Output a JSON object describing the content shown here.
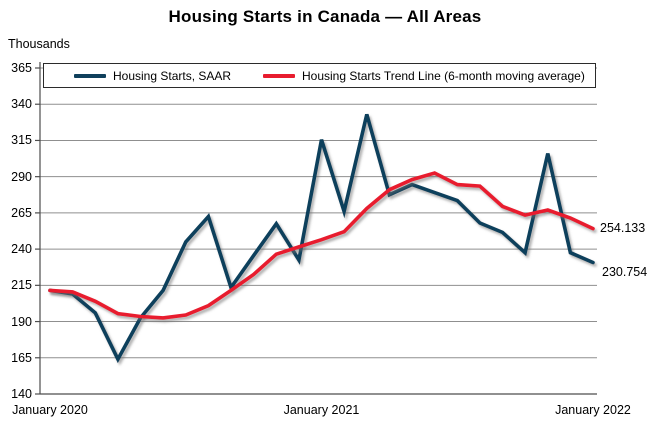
{
  "page": {
    "title": "Housing Starts in Canada — All Areas"
  },
  "legend": {
    "items": [
      {
        "label": "Housing Starts, SAAR",
        "color": "#0f405c"
      },
      {
        "label": "Housing Starts Trend Line (6-month moving average)",
        "color": "#e81c2e"
      }
    ]
  },
  "chart_data": {
    "type": "line",
    "title": "Housing Starts in Canada — All Areas",
    "xlabel": "",
    "ylabel": "Thousands",
    "ylim": [
      140,
      365
    ],
    "yticks": [
      140,
      165,
      190,
      215,
      240,
      265,
      290,
      315,
      340,
      365
    ],
    "grid": true,
    "legend_position": "top",
    "categories": [
      "Jan 2020",
      "Feb 2020",
      "Mar 2020",
      "Apr 2020",
      "May 2020",
      "Jun 2020",
      "Jul 2020",
      "Aug 2020",
      "Sep 2020",
      "Oct 2020",
      "Nov 2020",
      "Dec 2020",
      "Jan 2021",
      "Feb 2021",
      "Mar 2021",
      "Apr 2021",
      "May 2021",
      "Jun 2021",
      "Jul 2021",
      "Aug 2021",
      "Sep 2021",
      "Oct 2021",
      "Nov 2021",
      "Dec 2021",
      "Jan 2022"
    ],
    "x_tick_labels": [
      "January 2020",
      "January 2021",
      "January 2022"
    ],
    "x_tick_indices": [
      0,
      12,
      24
    ],
    "series": [
      {
        "name": "Housing Starts, SAAR",
        "color": "#0f405c",
        "values": [
          211.5,
          209,
          196,
          164,
          192.5,
          211.5,
          245,
          262.5,
          213.5,
          235.5,
          257.5,
          232.5,
          315.5,
          266,
          333,
          277.5,
          284.5,
          279,
          273.5,
          258,
          251.5,
          237.5,
          306,
          237.5,
          230.754
        ]
      },
      {
        "name": "Housing Starts Trend Line (6-month moving average)",
        "color": "#e81c2e",
        "values": [
          211.5,
          210.5,
          204,
          195.5,
          193.5,
          192.5,
          194.5,
          201,
          211.5,
          222.5,
          236.5,
          241.5,
          246.5,
          252,
          268,
          281,
          288,
          292.5,
          284.5,
          283.5,
          269.5,
          263.5,
          267,
          261.5,
          254.133
        ]
      }
    ],
    "end_labels": [
      {
        "text": "254.133",
        "series": "Housing Starts Trend Line (6-month moving average)",
        "value": 254.133
      },
      {
        "text": "230.754",
        "series": "Housing Starts, SAAR",
        "value": 230.754
      }
    ]
  }
}
